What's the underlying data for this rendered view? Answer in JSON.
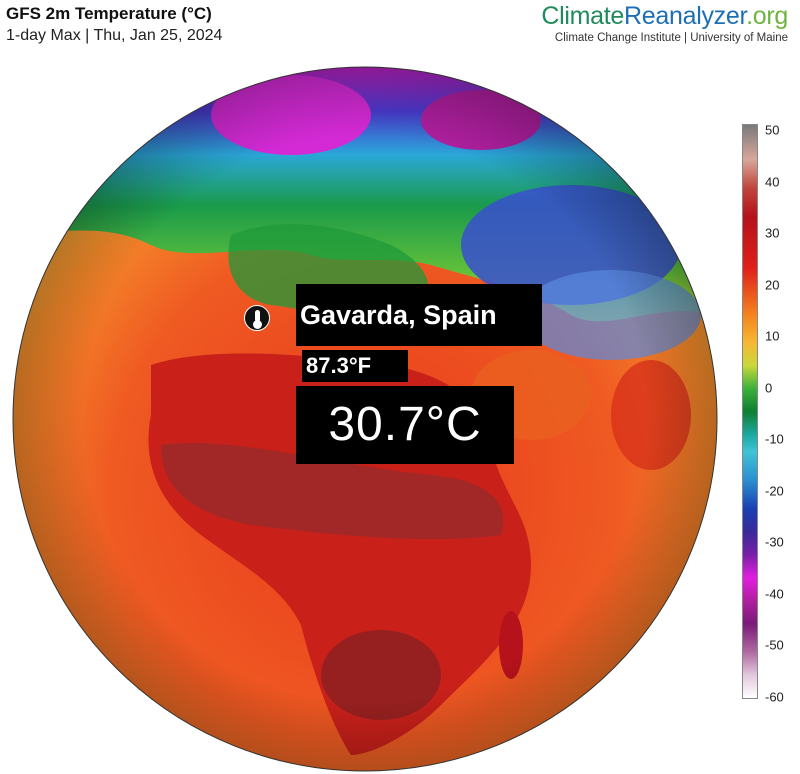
{
  "header": {
    "title": "GFS 2m Temperature (°C)",
    "subtitle": "1-day Max | Thu, Jan 25, 2024"
  },
  "brand": {
    "name_part1": "Climate",
    "name_part2": "Reanalyzer",
    "name_part3": ".org",
    "tagline": "Climate Change Institute | University of Maine"
  },
  "location": {
    "name": "Gavarda, Spain",
    "temp_f": "87.3°F",
    "temp_c": "30.7°C",
    "marker_icon": "thermometer-icon"
  },
  "color_scale": {
    "ticks": [
      "50",
      "40",
      "30",
      "20",
      "10",
      "0",
      "-10",
      "-20",
      "-30",
      "-40",
      "-50",
      "-60"
    ],
    "min": -60,
    "max": 50,
    "colors": [
      "#ffffff",
      "#7a1a7a",
      "#e11fe0",
      "#1a3fb3",
      "#3fc3d6",
      "#0e7f2f",
      "#f7b733",
      "#e0201a",
      "#b5121b",
      "#7a7a7a"
    ]
  }
}
